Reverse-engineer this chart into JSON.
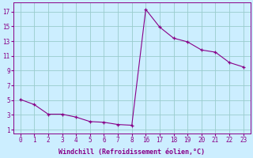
{
  "x_labels": [
    "0",
    "1",
    "2",
    "3",
    "4",
    "5",
    "6",
    "7",
    "8",
    "16",
    "17",
    "18",
    "19",
    "20",
    "21",
    "22",
    "23"
  ],
  "y": [
    5.1,
    4.4,
    3.1,
    3.1,
    2.7,
    2.1,
    2.0,
    1.7,
    1.6,
    17.3,
    14.9,
    13.4,
    12.9,
    11.8,
    11.5,
    10.1,
    9.5
  ],
  "yticks": [
    1,
    3,
    5,
    7,
    9,
    11,
    13,
    15,
    17
  ],
  "ylim": [
    0.5,
    18.2
  ],
  "xlabel": "Windchill (Refroidissement éolien,°C)",
  "line_color": "#880088",
  "marker": "+",
  "bg_color": "#cceeff",
  "grid_color": "#99cccc",
  "tick_fontsize": 5.5,
  "xlabel_fontsize": 6.0
}
